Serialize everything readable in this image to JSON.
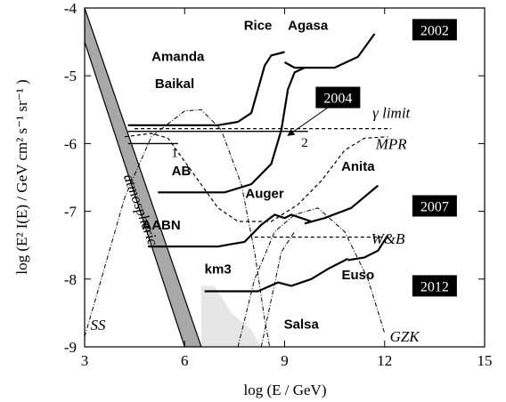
{
  "chart_data": {
    "type": "line",
    "title": "",
    "xlabel": "log (E / GeV)",
    "ylabel": "log (E² I(E) / GeV cm² s⁻¹ sr⁻¹ )",
    "xlim": [
      3,
      15
    ],
    "ylim": [
      -9,
      -4
    ],
    "x_ticks": [
      "3",
      "6",
      "9",
      "12",
      "15"
    ],
    "y_ticks": [
      "-4",
      "-5",
      "-6",
      "-7",
      "-8",
      "-9"
    ],
    "grid": false,
    "bands": [
      {
        "name": "atmospheric",
        "upper": [
          [
            3,
            -4.0
          ],
          [
            6.5,
            -9.0
          ]
        ],
        "lower": [
          [
            3,
            -4.5
          ],
          [
            6.0,
            -9.0
          ]
        ]
      }
    ],
    "curves": [
      {
        "name": "Amanda Baikal",
        "style": "solid",
        "points": [
          [
            4.3,
            -5.73
          ],
          [
            7.0,
            -5.73
          ],
          [
            7.6,
            -5.68
          ],
          [
            8.0,
            -5.55
          ],
          [
            8.2,
            -5.2
          ],
          [
            8.4,
            -4.85
          ],
          [
            8.6,
            -4.7
          ],
          [
            9.0,
            -4.65
          ]
        ]
      },
      {
        "name": "Rice Agasa",
        "style": "solid",
        "points": [
          [
            9.0,
            -4.8
          ],
          [
            9.3,
            -4.88
          ],
          [
            9.6,
            -4.88
          ],
          [
            10.5,
            -4.88
          ],
          [
            11.2,
            -4.72
          ],
          [
            11.7,
            -4.38
          ]
        ]
      },
      {
        "name": "AB",
        "style": "solid",
        "points": [
          [
            5.2,
            -6.72
          ],
          [
            7.2,
            -6.72
          ],
          [
            8.0,
            -6.6
          ],
          [
            8.6,
            -6.3
          ],
          [
            8.9,
            -5.8
          ],
          [
            9.1,
            -5.2
          ],
          [
            9.3,
            -4.95
          ],
          [
            9.6,
            -4.88
          ]
        ]
      },
      {
        "name": "AABN",
        "style": "solid",
        "points": [
          [
            4.9,
            -7.52
          ],
          [
            7.0,
            -7.52
          ],
          [
            7.8,
            -7.45
          ],
          [
            8.3,
            -7.2
          ],
          [
            8.7,
            -7.05
          ],
          [
            9.0,
            -7.1
          ],
          [
            9.2,
            -7.05
          ],
          [
            9.5,
            -7.1
          ],
          [
            9.8,
            -7.15
          ]
        ]
      },
      {
        "name": "Anita",
        "style": "solid",
        "points": [
          [
            9.6,
            -7.18
          ],
          [
            10.2,
            -7.1
          ],
          [
            11.0,
            -6.95
          ],
          [
            11.8,
            -6.62
          ]
        ]
      },
      {
        "name": "km3",
        "style": "solid",
        "points": [
          [
            6.6,
            -8.18
          ],
          [
            8.2,
            -8.18
          ],
          [
            8.8,
            -8.05
          ],
          [
            9.2,
            -8.1
          ],
          [
            9.8,
            -8.0
          ],
          [
            10.3,
            -7.85
          ],
          [
            10.9,
            -7.7
          ]
        ]
      },
      {
        "name": "Euso",
        "style": "solid",
        "points": [
          [
            10.9,
            -7.72
          ],
          [
            11.4,
            -7.68
          ],
          [
            11.8,
            -7.58
          ],
          [
            12.1,
            -7.35
          ]
        ]
      },
      {
        "name": "1",
        "style": "solid",
        "points": [
          [
            4.3,
            -6.0
          ],
          [
            5.8,
            -6.0
          ]
        ]
      },
      {
        "name": "2",
        "style": "solid",
        "points": [
          [
            4.3,
            -5.82
          ],
          [
            9.7,
            -5.82
          ]
        ]
      },
      {
        "name": "γ limit",
        "style": "dashed",
        "points": [
          [
            4.5,
            -5.78
          ],
          [
            12.2,
            -5.78
          ]
        ]
      },
      {
        "name": "MPR",
        "style": "dashed",
        "points": [
          [
            4.2,
            -5.9
          ],
          [
            5.0,
            -5.85
          ],
          [
            5.5,
            -5.92
          ],
          [
            6.2,
            -6.4
          ],
          [
            7.0,
            -6.95
          ],
          [
            7.6,
            -7.15
          ],
          [
            8.6,
            -7.15
          ],
          [
            9.4,
            -6.9
          ],
          [
            10.1,
            -6.55
          ],
          [
            10.8,
            -6.1
          ],
          [
            11.4,
            -5.92
          ],
          [
            12.1,
            -5.9
          ]
        ]
      },
      {
        "name": "W&B",
        "style": "dashed",
        "points": [
          [
            8.1,
            -7.38
          ],
          [
            12.1,
            -7.38
          ]
        ]
      },
      {
        "name": "SS",
        "style": "dashdot",
        "points": [
          [
            3.0,
            -8.85
          ],
          [
            3.5,
            -8.0
          ],
          [
            4.2,
            -6.8
          ],
          [
            5.0,
            -5.9
          ],
          [
            6.0,
            -5.52
          ],
          [
            6.5,
            -5.5
          ],
          [
            7.1,
            -5.8
          ],
          [
            7.7,
            -6.6
          ],
          [
            8.1,
            -7.6
          ],
          [
            8.4,
            -8.6
          ],
          [
            8.55,
            -9.0
          ]
        ]
      },
      {
        "name": "GZK",
        "style": "dashdot",
        "points": [
          [
            7.6,
            -9.0
          ],
          [
            8.1,
            -8.0
          ],
          [
            8.7,
            -7.3
          ],
          [
            9.3,
            -7.05
          ],
          [
            10.0,
            -6.95
          ],
          [
            10.8,
            -7.3
          ],
          [
            11.5,
            -8.0
          ],
          [
            12.0,
            -8.8
          ]
        ]
      },
      {
        "name": "Salsa",
        "style": "dashdot",
        "points": [
          [
            8.3,
            -9.0
          ],
          [
            8.6,
            -8.3
          ],
          [
            8.9,
            -7.6
          ],
          [
            9.3,
            -7.3
          ]
        ]
      }
    ],
    "shaded_region": {
      "name": "light-gray-region",
      "points": [
        [
          6.5,
          -9.0
        ],
        [
          6.5,
          -8.1
        ],
        [
          6.9,
          -8.1
        ],
        [
          7.4,
          -8.5
        ],
        [
          8.0,
          -8.75
        ],
        [
          8.3,
          -9.0
        ]
      ]
    },
    "annotations": [
      {
        "text": "Rice",
        "x": 8.2,
        "y": -4.32,
        "style": "bold"
      },
      {
        "text": "Agasa",
        "x": 9.7,
        "y": -4.32,
        "style": "bold"
      },
      {
        "text": "Amanda",
        "x": 5.8,
        "y": -4.78,
        "style": "bold"
      },
      {
        "text": "Baikal",
        "x": 5.7,
        "y": -5.18,
        "style": "bold"
      },
      {
        "text": "AB",
        "x": 5.9,
        "y": -6.47,
        "style": "bold"
      },
      {
        "text": "AABN",
        "x": 5.3,
        "y": -7.27,
        "style": "bold"
      },
      {
        "text": "Auger",
        "x": 8.4,
        "y": -6.8,
        "style": "bold"
      },
      {
        "text": "Anita",
        "x": 11.2,
        "y": -6.4,
        "style": "bold"
      },
      {
        "text": "km3",
        "x": 7.0,
        "y": -7.92,
        "style": "bold"
      },
      {
        "text": "Salsa",
        "x": 9.5,
        "y": -8.73,
        "style": "bold"
      },
      {
        "text": "Euso",
        "x": 11.2,
        "y": -8.0,
        "style": "bold"
      },
      {
        "text": "1",
        "x": 5.7,
        "y": -6.2,
        "style": "plain"
      },
      {
        "text": "2",
        "x": 9.6,
        "y": -6.05,
        "style": "plain"
      },
      {
        "text": "γ limit",
        "x": 12.2,
        "y": -5.62,
        "style": "italic"
      },
      {
        "text": "MPR",
        "x": 12.2,
        "y": -6.08,
        "style": "italic"
      },
      {
        "text": "W&B",
        "x": 12.1,
        "y": -7.48,
        "style": "italic"
      },
      {
        "text": "SS",
        "x": 3.4,
        "y": -8.75,
        "style": "italic"
      },
      {
        "text": "GZK",
        "x": 12.6,
        "y": -8.92,
        "style": "italic"
      }
    ],
    "rotated_annotation": {
      "text": "atmospheric",
      "x": 4.55,
      "y": -7.0,
      "rotate": 70
    },
    "year_boxes": [
      {
        "text": "2002",
        "x": 13.5,
        "y": -4.32
      },
      {
        "text": "2004",
        "x": 10.6,
        "y": -5.32
      },
      {
        "text": "2007",
        "x": 13.5,
        "y": -6.92
      },
      {
        "text": "2012",
        "x": 13.5,
        "y": -8.1
      }
    ],
    "arrow": {
      "from": [
        10.5,
        -5.4
      ],
      "to": [
        9.1,
        -5.88
      ]
    }
  }
}
